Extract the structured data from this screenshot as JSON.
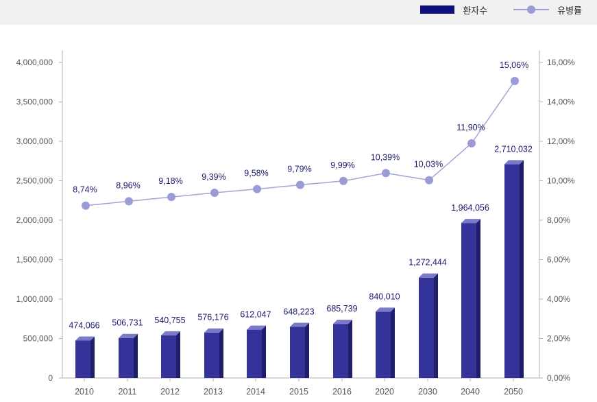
{
  "chart_data": {
    "type": "bar",
    "categories": [
      "2010",
      "2011",
      "2012",
      "2013",
      "2014",
      "2015",
      "2016",
      "2020",
      "2030",
      "2040",
      "2050"
    ],
    "series": [
      {
        "name": "환자수",
        "kind": "bar",
        "axis": "left",
        "color": "#2b2b8c",
        "values": [
          474066,
          506731,
          540755,
          576176,
          612047,
          648223,
          685739,
          840010,
          1272444,
          1964056,
          2710032
        ],
        "labels": [
          "474,066",
          "506,731",
          "540,755",
          "576,176",
          "612,047",
          "648,223",
          "685,739",
          "840,010",
          "1,272,444",
          "1,964,056",
          "2,710,032"
        ]
      },
      {
        "name": "유병률",
        "kind": "line",
        "axis": "right",
        "color": "#9b9bd6",
        "values": [
          8.74,
          8.96,
          9.18,
          9.39,
          9.58,
          9.79,
          9.99,
          10.39,
          10.03,
          11.9,
          15.06
        ],
        "labels": [
          "8,74%",
          "8,96%",
          "9,18%",
          "9,39%",
          "9,58%",
          "9,79%",
          "9,99%",
          "10,39%",
          "10,03%",
          "11,90%",
          "15,06%"
        ]
      }
    ],
    "left_axis": {
      "ylim": [
        0,
        4000000
      ],
      "ticks": [
        0,
        500000,
        1000000,
        1500000,
        2000000,
        2500000,
        3000000,
        3500000,
        4000000
      ],
      "tick_labels": [
        "0",
        "500,000",
        "1,000,000",
        "1,500,000",
        "2,000,000",
        "2,500,000",
        "3,000,000",
        "3,500,000",
        "4,000,000"
      ]
    },
    "right_axis": {
      "ylim": [
        0,
        16
      ],
      "ticks": [
        0,
        2,
        4,
        6,
        8,
        10,
        12,
        14,
        16
      ],
      "tick_labels": [
        "0,00%",
        "2,00%",
        "4,00%",
        "6,00%",
        "8,00%",
        "10,00%",
        "12,00%",
        "14,00%",
        "16,00%"
      ]
    },
    "legend": {
      "position": "top-right",
      "entries": [
        {
          "label": "환자수",
          "marker": "bar",
          "color": "#10107a"
        },
        {
          "label": "유병률",
          "marker": "line-dot",
          "color": "#9b9bd6"
        }
      ]
    },
    "title": "",
    "xlabel": "",
    "ylabel": ""
  }
}
